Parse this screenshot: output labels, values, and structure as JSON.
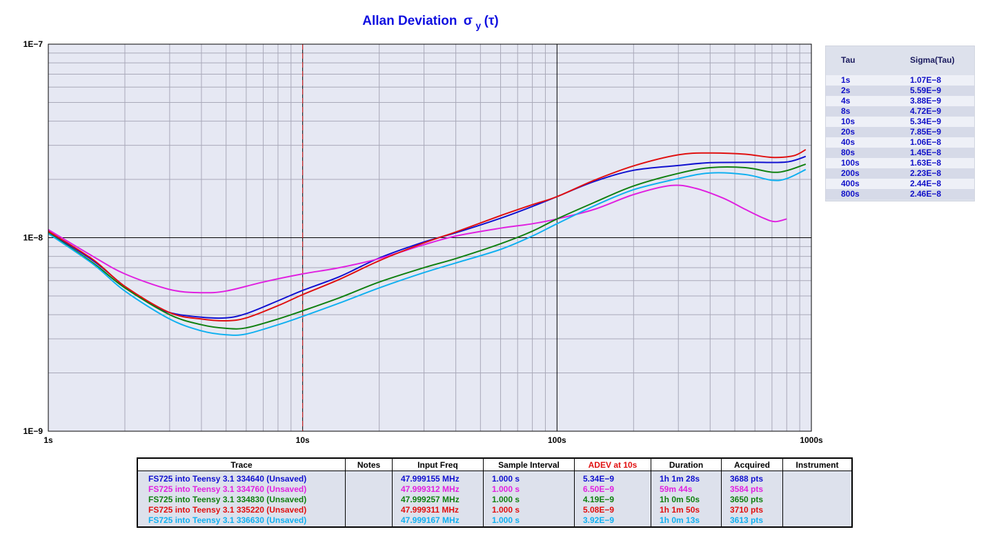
{
  "title": "Allan Deviation",
  "title_symbol": "σ",
  "title_sub": "y",
  "title_arg": "(τ)",
  "colors": {
    "plot_bg": "#e6e8f3",
    "grid_major": "#000000",
    "grid_minor": "#a8a8b8",
    "marker": "#e02020"
  },
  "chart_data": {
    "type": "line",
    "title": "Allan Deviation σy(τ)",
    "xscale": "log",
    "yscale": "log",
    "xlim": [
      1,
      1000
    ],
    "ylim": [
      1e-09,
      1e-07
    ],
    "xtick_labels": [
      "1s",
      "10s",
      "100s",
      "1000s"
    ],
    "ytick_labels": [
      "1E−9",
      "1E−8",
      "1E−7"
    ],
    "marker_x": 10,
    "grid": true,
    "series": [
      {
        "name": "FS725  into Teensy 3.1 334640 (Unsaved)",
        "color": "#1010d0",
        "points": [
          [
            1,
            1.07e-08
          ],
          [
            1.5,
            7.6e-09
          ],
          [
            2,
            5.59e-09
          ],
          [
            2.5,
            4.6e-09
          ],
          [
            3,
            4.1e-09
          ],
          [
            4,
            3.88e-09
          ],
          [
            5,
            3.85e-09
          ],
          [
            6,
            4.05e-09
          ],
          [
            8,
            4.72e-09
          ],
          [
            10,
            5.34e-09
          ],
          [
            14,
            6.3e-09
          ],
          [
            20,
            7.85e-09
          ],
          [
            30,
            9.5e-09
          ],
          [
            40,
            1.06e-08
          ],
          [
            60,
            1.26e-08
          ],
          [
            80,
            1.45e-08
          ],
          [
            100,
            1.63e-08
          ],
          [
            140,
            1.95e-08
          ],
          [
            200,
            2.23e-08
          ],
          [
            300,
            2.36e-08
          ],
          [
            400,
            2.44e-08
          ],
          [
            600,
            2.45e-08
          ],
          [
            800,
            2.46e-08
          ],
          [
            950,
            2.63e-08
          ]
        ]
      },
      {
        "name": "FS725  into Teensy 3.1 334760 (Unsaved)",
        "color": "#e020e0",
        "points": [
          [
            1,
            1.1e-08
          ],
          [
            1.5,
            8e-09
          ],
          [
            2,
            6.5e-09
          ],
          [
            3,
            5.4e-09
          ],
          [
            4,
            5.2e-09
          ],
          [
            5,
            5.3e-09
          ],
          [
            7,
            5.9e-09
          ],
          [
            10,
            6.5e-09
          ],
          [
            14,
            7e-09
          ],
          [
            20,
            7.8e-09
          ],
          [
            30,
            9.2e-09
          ],
          [
            40,
            1.02e-08
          ],
          [
            60,
            1.12e-08
          ],
          [
            80,
            1.18e-08
          ],
          [
            100,
            1.25e-08
          ],
          [
            140,
            1.4e-08
          ],
          [
            200,
            1.67e-08
          ],
          [
            280,
            1.86e-08
          ],
          [
            350,
            1.8e-08
          ],
          [
            450,
            1.6e-08
          ],
          [
            550,
            1.4e-08
          ],
          [
            650,
            1.26e-08
          ],
          [
            720,
            1.21e-08
          ],
          [
            800,
            1.25e-08
          ]
        ]
      },
      {
        "name": "FS725  into Teensy 3.1 334830 (Unsaved)",
        "color": "#108010",
        "points": [
          [
            1,
            1.06e-08
          ],
          [
            1.5,
            7.4e-09
          ],
          [
            2,
            5.5e-09
          ],
          [
            3,
            4e-09
          ],
          [
            4,
            3.55e-09
          ],
          [
            5,
            3.4e-09
          ],
          [
            6,
            3.42e-09
          ],
          [
            8,
            3.8e-09
          ],
          [
            10,
            4.19e-09
          ],
          [
            14,
            4.9e-09
          ],
          [
            20,
            5.9e-09
          ],
          [
            30,
            7e-09
          ],
          [
            40,
            7.8e-09
          ],
          [
            60,
            9.3e-09
          ],
          [
            80,
            1.08e-08
          ],
          [
            100,
            1.25e-08
          ],
          [
            140,
            1.52e-08
          ],
          [
            200,
            1.85e-08
          ],
          [
            300,
            2.15e-08
          ],
          [
            400,
            2.3e-08
          ],
          [
            550,
            2.3e-08
          ],
          [
            700,
            2.18e-08
          ],
          [
            800,
            2.22e-08
          ],
          [
            950,
            2.4e-08
          ]
        ]
      },
      {
        "name": "FS725  into Teensy 3.1 335220 (Unsaved)",
        "color": "#e01010",
        "points": [
          [
            1,
            1.08e-08
          ],
          [
            1.5,
            7.7e-09
          ],
          [
            2,
            5.6e-09
          ],
          [
            3,
            4.1e-09
          ],
          [
            4,
            3.8e-09
          ],
          [
            5,
            3.72e-09
          ],
          [
            6,
            3.85e-09
          ],
          [
            8,
            4.45e-09
          ],
          [
            10,
            5.08e-09
          ],
          [
            14,
            6.1e-09
          ],
          [
            20,
            7.6e-09
          ],
          [
            30,
            9.4e-09
          ],
          [
            40,
            1.07e-08
          ],
          [
            60,
            1.3e-08
          ],
          [
            80,
            1.48e-08
          ],
          [
            100,
            1.63e-08
          ],
          [
            140,
            1.98e-08
          ],
          [
            200,
            2.35e-08
          ],
          [
            300,
            2.68e-08
          ],
          [
            400,
            2.74e-08
          ],
          [
            550,
            2.7e-08
          ],
          [
            700,
            2.6e-08
          ],
          [
            850,
            2.65e-08
          ],
          [
            950,
            2.85e-08
          ]
        ]
      },
      {
        "name": "FS725  into Teensy 3.1 336630 (Unsaved)",
        "color": "#10b0f0",
        "points": [
          [
            1,
            1.05e-08
          ],
          [
            1.5,
            7.3e-09
          ],
          [
            2,
            5.3e-09
          ],
          [
            3,
            3.8e-09
          ],
          [
            4,
            3.3e-09
          ],
          [
            5,
            3.15e-09
          ],
          [
            6,
            3.18e-09
          ],
          [
            8,
            3.55e-09
          ],
          [
            10,
            3.92e-09
          ],
          [
            14,
            4.6e-09
          ],
          [
            20,
            5.5e-09
          ],
          [
            30,
            6.6e-09
          ],
          [
            40,
            7.4e-09
          ],
          [
            60,
            8.7e-09
          ],
          [
            80,
            1.02e-08
          ],
          [
            100,
            1.18e-08
          ],
          [
            140,
            1.46e-08
          ],
          [
            200,
            1.77e-08
          ],
          [
            300,
            2.02e-08
          ],
          [
            400,
            2.16e-08
          ],
          [
            550,
            2.12e-08
          ],
          [
            700,
            1.98e-08
          ],
          [
            800,
            2.02e-08
          ],
          [
            950,
            2.25e-08
          ]
        ]
      }
    ]
  },
  "sigma_table": {
    "header_tau": "Tau",
    "header_sigma": "Sigma(Tau)",
    "rows": [
      {
        "tau": "1s",
        "sigma": "1.07E−8"
      },
      {
        "tau": "2s",
        "sigma": "5.59E−9"
      },
      {
        "tau": "4s",
        "sigma": "3.88E−9"
      },
      {
        "tau": "8s",
        "sigma": "4.72E−9"
      },
      {
        "tau": "10s",
        "sigma": "5.34E−9"
      },
      {
        "tau": "20s",
        "sigma": "7.85E−9"
      },
      {
        "tau": "40s",
        "sigma": "1.06E−8"
      },
      {
        "tau": "80s",
        "sigma": "1.45E−8"
      },
      {
        "tau": "100s",
        "sigma": "1.63E−8"
      },
      {
        "tau": "200s",
        "sigma": "2.23E−8"
      },
      {
        "tau": "400s",
        "sigma": "2.44E−8"
      },
      {
        "tau": "800s",
        "sigma": "2.46E−8"
      }
    ]
  },
  "trace_table": {
    "headers": {
      "trace": "Trace",
      "notes": "Notes",
      "input_freq": "Input Freq",
      "sample_interval": "Sample Interval",
      "adev": "ADEV at 10s",
      "duration": "Duration",
      "acquired": "Acquired",
      "instrument": "Instrument"
    },
    "adev_header_color": "#e01010",
    "rows": [
      {
        "trace": "FS725  into Teensy 3.1 334640 (Unsaved)",
        "notes": "",
        "input_freq": "47.999155 MHz",
        "sample_interval": "1.000 s",
        "adev": "5.34E−9",
        "duration": "1h 1m 28s",
        "acquired": "3688 pts",
        "instrument": "",
        "color": "#1010d0"
      },
      {
        "trace": "FS725  into Teensy 3.1 334760 (Unsaved)",
        "notes": "",
        "input_freq": "47.999312 MHz",
        "sample_interval": "1.000 s",
        "adev": "6.50E−9",
        "duration": "59m 44s",
        "acquired": "3584 pts",
        "instrument": "",
        "color": "#e020e0"
      },
      {
        "trace": "FS725  into Teensy 3.1 334830 (Unsaved)",
        "notes": "",
        "input_freq": "47.999257 MHz",
        "sample_interval": "1.000 s",
        "adev": "4.19E−9",
        "duration": "1h 0m 50s",
        "acquired": "3650 pts",
        "instrument": "",
        "color": "#108010"
      },
      {
        "trace": "FS725  into Teensy 3.1 335220 (Unsaved)",
        "notes": "",
        "input_freq": "47.999311 MHz",
        "sample_interval": "1.000 s",
        "adev": "5.08E−9",
        "duration": "1h 1m 50s",
        "acquired": "3710 pts",
        "instrument": "",
        "color": "#e01010"
      },
      {
        "trace": "FS725  into Teensy 3.1 336630 (Unsaved)",
        "notes": "",
        "input_freq": "47.999167 MHz",
        "sample_interval": "1.000 s",
        "adev": "3.92E−9",
        "duration": "1h 0m 13s",
        "acquired": "3613 pts",
        "instrument": "",
        "color": "#10b0f0"
      }
    ]
  }
}
